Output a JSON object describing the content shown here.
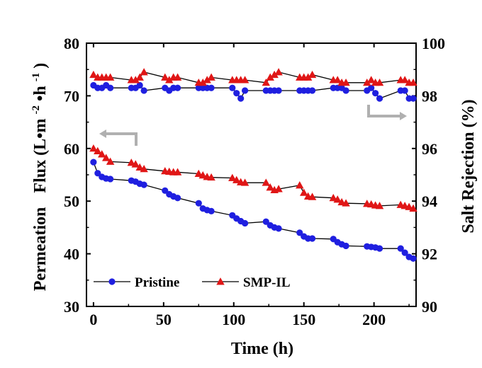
{
  "chart_data": {
    "type": "line",
    "title": "",
    "xlabel": "Time (h)",
    "ylabel_left_parts": [
      "Permeation",
      "Flux (L•m",
      "-2",
      "•h",
      "-1",
      ")"
    ],
    "ylabel_right": "Salt Rejection (%)",
    "xlim": [
      -5,
      230
    ],
    "ylim_left": [
      30,
      80
    ],
    "ylim_right": [
      90,
      100
    ],
    "x_ticks": [
      0,
      50,
      100,
      150,
      200
    ],
    "y_left_ticks": [
      30,
      40,
      50,
      60,
      70,
      80
    ],
    "y_right_ticks": [
      90,
      92,
      94,
      96,
      98,
      100
    ],
    "legend_position": "bottom-left",
    "colors": {
      "pristine": "#1f1fe0",
      "smp_il": "#e01616",
      "line": "#000000",
      "arrow": "#b0b0b0"
    },
    "series": [
      {
        "key": "pristine_flux",
        "name": "Pristine",
        "axis": "left",
        "marker": "circle",
        "in_legend": true,
        "x": [
          0,
          3,
          6,
          9,
          12,
          27,
          30,
          33,
          36,
          51,
          54,
          57,
          60,
          75,
          78,
          81,
          84,
          99,
          102,
          105,
          108,
          123,
          126,
          129,
          132,
          147,
          150,
          153,
          156,
          171,
          174,
          177,
          180,
          195,
          198,
          201,
          204,
          219,
          222,
          225,
          228
        ],
        "y": [
          57.4,
          55.3,
          54.6,
          54.3,
          54.2,
          53.9,
          53.7,
          53.3,
          53.1,
          52.0,
          51.3,
          50.9,
          50.6,
          49.6,
          48.6,
          48.3,
          48.1,
          47.3,
          46.7,
          46.2,
          45.8,
          46.1,
          45.4,
          45.0,
          44.8,
          44.0,
          43.3,
          42.9,
          42.9,
          42.8,
          42.2,
          41.8,
          41.5,
          41.4,
          41.3,
          41.2,
          41.0,
          41.0,
          40.2,
          39.4,
          39.1
        ]
      },
      {
        "key": "smp_flux",
        "name": "SMP-IL",
        "axis": "left",
        "marker": "triangle",
        "in_legend": true,
        "x": [
          0,
          3,
          6,
          9,
          12,
          27,
          30,
          33,
          36,
          51,
          54,
          57,
          60,
          75,
          78,
          81,
          84,
          99,
          102,
          105,
          108,
          123,
          126,
          129,
          132,
          147,
          150,
          153,
          156,
          171,
          174,
          177,
          180,
          195,
          198,
          201,
          204,
          219,
          222,
          225,
          228
        ],
        "y": [
          60.0,
          59.5,
          58.9,
          58.2,
          57.5,
          57.3,
          57.0,
          56.4,
          56.1,
          55.7,
          55.6,
          55.5,
          55.5,
          55.2,
          54.9,
          54.6,
          54.5,
          54.4,
          54.0,
          53.6,
          53.5,
          53.5,
          52.6,
          52.1,
          52.3,
          53.0,
          51.6,
          50.9,
          50.8,
          50.6,
          50.3,
          49.8,
          49.6,
          49.5,
          49.4,
          49.2,
          49.1,
          49.3,
          49.1,
          48.9,
          48.6
        ]
      },
      {
        "key": "pristine_rejection",
        "name": "Pristine",
        "axis": "right",
        "marker": "circle",
        "in_legend": false,
        "x": [
          0,
          3,
          6,
          9,
          12,
          27,
          30,
          33,
          36,
          51,
          54,
          57,
          60,
          75,
          78,
          81,
          84,
          99,
          102,
          105,
          108,
          123,
          126,
          129,
          132,
          147,
          150,
          153,
          156,
          171,
          174,
          177,
          180,
          195,
          198,
          201,
          204,
          219,
          222,
          225,
          228
        ],
        "y": [
          98.4,
          98.3,
          98.3,
          98.4,
          98.3,
          98.3,
          98.3,
          98.4,
          98.2,
          98.3,
          98.2,
          98.3,
          98.3,
          98.3,
          98.3,
          98.3,
          98.3,
          98.3,
          98.1,
          97.9,
          98.2,
          98.2,
          98.2,
          98.2,
          98.2,
          98.2,
          98.2,
          98.2,
          98.2,
          98.3,
          98.3,
          98.3,
          98.2,
          98.2,
          98.3,
          98.1,
          97.9,
          98.2,
          98.2,
          97.9,
          97.9
        ]
      },
      {
        "key": "smp_rejection",
        "name": "SMP-IL",
        "axis": "right",
        "marker": "triangle",
        "in_legend": false,
        "x": [
          0,
          3,
          6,
          9,
          12,
          27,
          30,
          33,
          36,
          51,
          54,
          57,
          60,
          75,
          78,
          81,
          84,
          99,
          102,
          105,
          108,
          123,
          126,
          129,
          132,
          147,
          150,
          153,
          156,
          171,
          174,
          177,
          180,
          195,
          198,
          201,
          204,
          219,
          222,
          225,
          228
        ],
        "y": [
          98.8,
          98.7,
          98.7,
          98.7,
          98.7,
          98.6,
          98.6,
          98.7,
          98.9,
          98.7,
          98.6,
          98.7,
          98.7,
          98.5,
          98.5,
          98.6,
          98.7,
          98.6,
          98.6,
          98.6,
          98.6,
          98.5,
          98.7,
          98.8,
          98.9,
          98.7,
          98.7,
          98.7,
          98.8,
          98.6,
          98.6,
          98.5,
          98.5,
          98.5,
          98.6,
          98.5,
          98.5,
          98.6,
          98.6,
          98.5,
          98.5
        ]
      }
    ]
  }
}
